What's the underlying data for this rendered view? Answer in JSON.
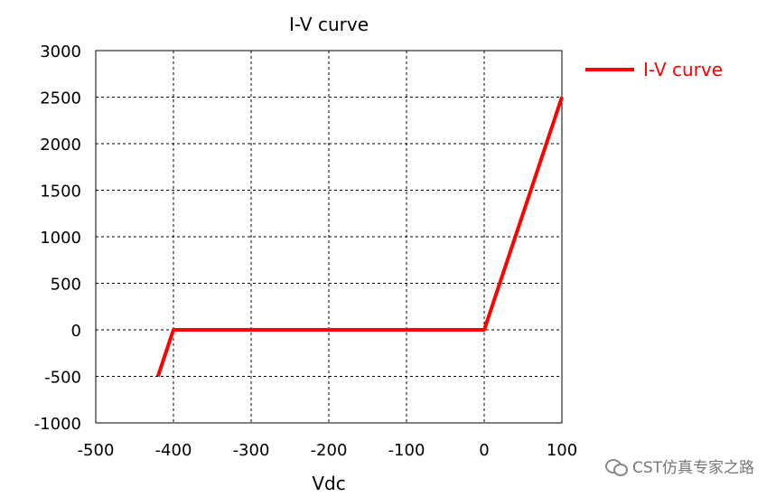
{
  "chart_data": {
    "type": "line",
    "title": "I-V curve",
    "xlabel": "Vdc",
    "ylabel": "",
    "xlim": [
      -500,
      100
    ],
    "ylim": [
      -1000,
      3000
    ],
    "x_ticks": [
      -500,
      -400,
      -300,
      -200,
      -100,
      0,
      100
    ],
    "y_ticks": [
      -1000,
      -500,
      0,
      500,
      1000,
      1500,
      2000,
      2500,
      3000
    ],
    "grid": true,
    "legend_position": "right",
    "series": [
      {
        "name": "I-V curve",
        "color": "#ff0000",
        "x": [
          -420,
          -400,
          0,
          100
        ],
        "y": [
          -500,
          0,
          0,
          2500
        ]
      }
    ]
  },
  "watermark": {
    "text": "CST仿真专家之路",
    "icon": "wechat-icon"
  }
}
